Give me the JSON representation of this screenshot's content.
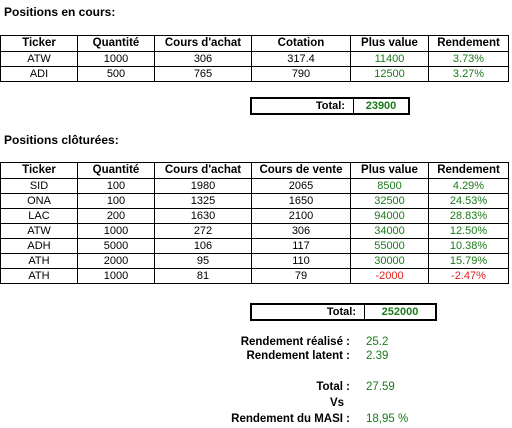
{
  "open_positions": {
    "heading": "Positions en cours:",
    "columns": [
      "Ticker",
      "Quantité",
      "Cours d'achat",
      "Cotation",
      "Plus value",
      "Rendement"
    ],
    "rows": [
      {
        "ticker": "ATW",
        "quantite": "1000",
        "cours_achat": "306",
        "cours": "317.4",
        "plus_value": "11400",
        "rendement": "3.73%"
      },
      {
        "ticker": "ADI",
        "quantite": "500",
        "cours_achat": "765",
        "cours": "790",
        "plus_value": "12500",
        "rendement": "3.27%"
      }
    ],
    "total_label": "Total:",
    "total_value": "23900"
  },
  "closed_positions": {
    "heading": "Positions clôturées:",
    "columns": [
      "Ticker",
      "Quantité",
      "Cours d'achat",
      "Cours de vente",
      "Plus value",
      "Rendement"
    ],
    "rows": [
      {
        "ticker": "SID",
        "quantite": "100",
        "cours_achat": "1980",
        "cours": "2065",
        "plus_value": "8500",
        "rendement": "4.29%"
      },
      {
        "ticker": "ONA",
        "quantite": "100",
        "cours_achat": "1325",
        "cours": "1650",
        "plus_value": "32500",
        "rendement": "24.53%"
      },
      {
        "ticker": "LAC",
        "quantite": "200",
        "cours_achat": "1630",
        "cours": "2100",
        "plus_value": "94000",
        "rendement": "28.83%"
      },
      {
        "ticker": "ATW",
        "quantite": "1000",
        "cours_achat": "272",
        "cours": "306",
        "plus_value": "34000",
        "rendement": "12.50%"
      },
      {
        "ticker": "ADH",
        "quantite": "5000",
        "cours_achat": "106",
        "cours": "117",
        "plus_value": "55000",
        "rendement": "10.38%"
      },
      {
        "ticker": "ATH",
        "quantite": "2000",
        "cours_achat": "95",
        "cours": "110",
        "plus_value": "30000",
        "rendement": "15.79%"
      },
      {
        "ticker": "ATH",
        "quantite": "1000",
        "cours_achat": "81",
        "cours": "79",
        "plus_value": "-2000",
        "rendement": "-2.47%",
        "negative": true
      }
    ],
    "total_label": "Total:",
    "total_value": "252000"
  },
  "summary": {
    "realized_label": "Rendement réalisé :",
    "realized_value": "25.2",
    "latent_label": "Rendement latent :",
    "latent_value": "2.39",
    "total_label": "Total :",
    "total_value": "27.59",
    "vs_label": "Vs",
    "masi_label": "Rendement du MASI :",
    "masi_value": "18,95 %"
  },
  "colors": {
    "positive": "#1a7a1a",
    "negative": "#e0211c"
  }
}
